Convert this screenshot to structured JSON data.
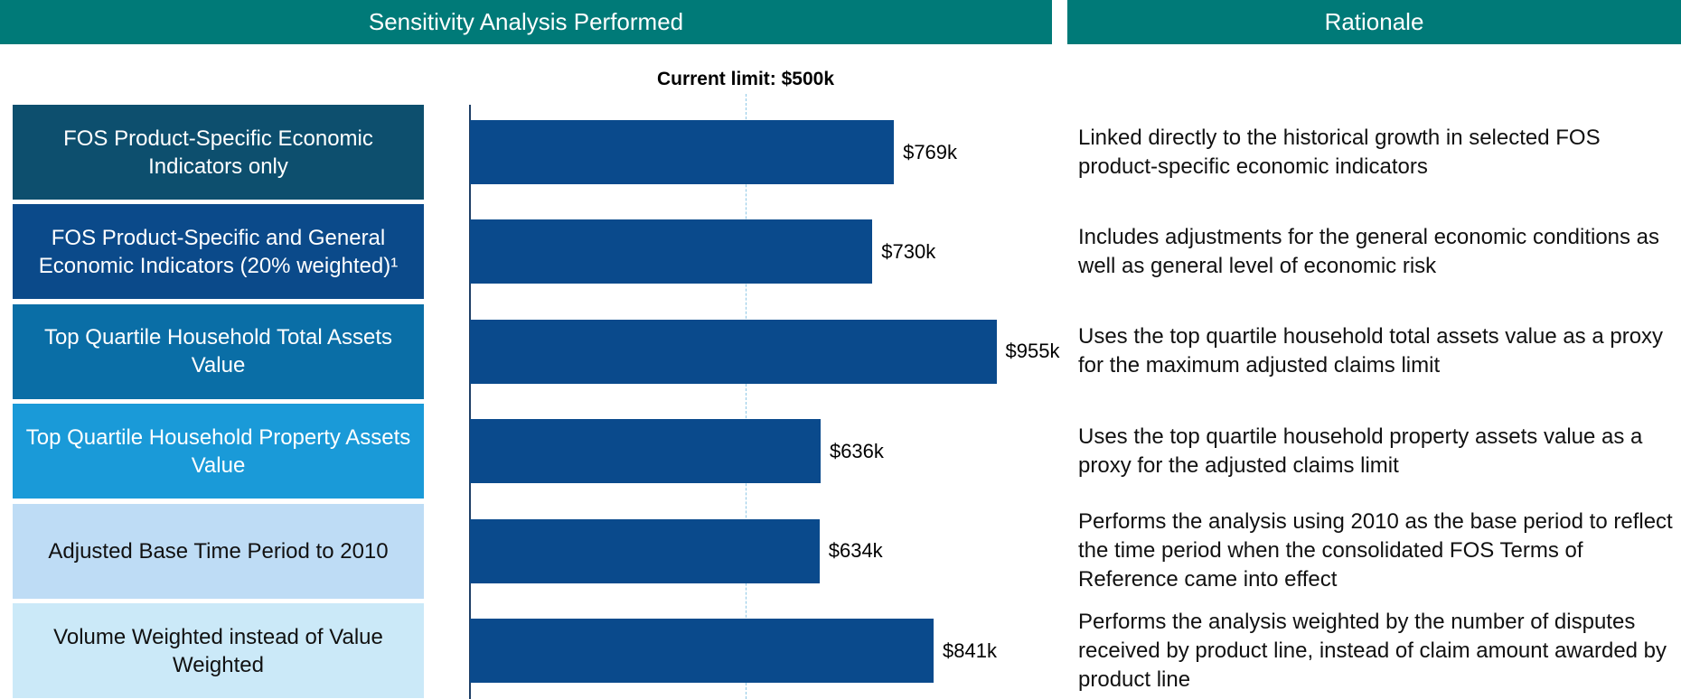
{
  "header": {
    "left": "Sensitivity Analysis Performed",
    "right": "Rationale"
  },
  "chart_data": {
    "type": "bar",
    "orientation": "horizontal",
    "categories": [
      "FOS Product-Specific Economic Indicators only",
      "FOS Product-Specific and General Economic Indicators (20% weighted)¹",
      "Top Quartile Household Total Assets Value",
      "Top Quartile Household Property Assets Value",
      "Adjusted Base Time Period to 2010",
      "Volume Weighted instead of Value Weighted"
    ],
    "category_colors": [
      "#0d4f6e",
      "#0b4a8a",
      "#0a6ea6",
      "#1a9ad8",
      "#bedcf5",
      "#cbe9f8"
    ],
    "values": [
      769,
      730,
      955,
      636,
      634,
      841
    ],
    "value_labels": [
      "$769k",
      "$730k",
      "$955k",
      "$636k",
      "$634k",
      "$841k"
    ],
    "color": "#0a4a8c",
    "xlim": [
      0,
      1000
    ],
    "reference": {
      "value": 500,
      "label": "Current limit: $500k"
    }
  },
  "rationale": [
    "Linked directly to the historical growth in selected FOS product-specific economic indicators",
    "Includes adjustments for the general economic conditions as well as general level of economic risk",
    "Uses the top quartile household total assets value as a proxy for the maximum adjusted claims limit",
    "Uses the top quartile household property assets value as a proxy for the adjusted claims limit",
    "Performs the analysis using 2010 as the base period to reflect the time period when the consolidated FOS Terms of Reference came into effect",
    "Performs the analysis weighted by the number of disputes received by product line, instead of claim amount awarded by product line"
  ]
}
